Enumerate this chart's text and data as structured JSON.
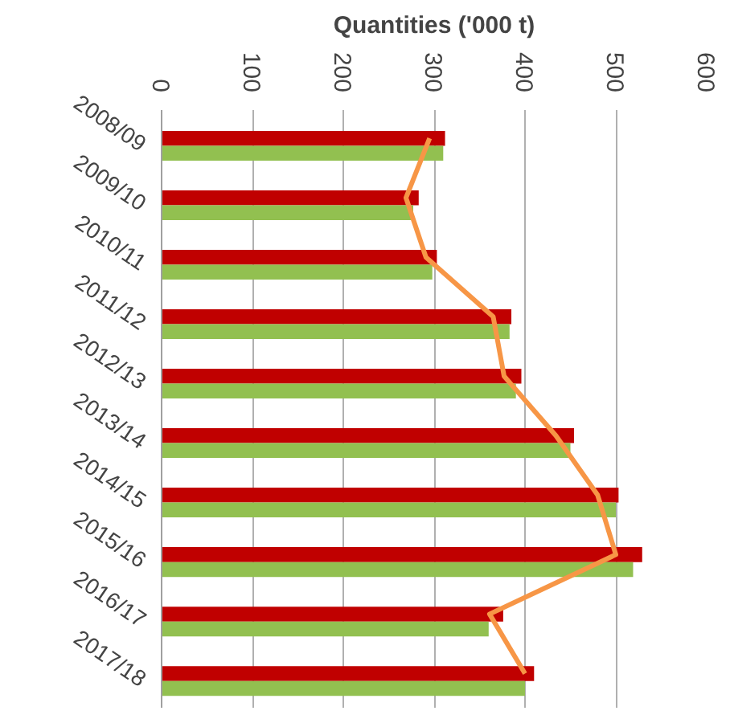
{
  "chart_data": {
    "type": "bar",
    "orientation": "horizontal",
    "title": "Quantities ('000 t)",
    "categories": [
      "2008/09",
      "2009/10",
      "2010/11",
      "2011/12",
      "2012/13",
      "2013/14",
      "2014/15",
      "2015/16",
      "2016/17",
      "2017/18"
    ],
    "series": [
      {
        "color": "#c00000",
        "values": [
          312,
          283,
          303,
          385,
          396,
          454,
          503,
          529,
          376,
          410
        ]
      },
      {
        "color": "#92c050",
        "values": [
          310,
          277,
          298,
          383,
          390,
          450,
          500,
          519,
          360,
          400
        ]
      },
      {
        "type": "line",
        "color": "#f79646",
        "values": [
          295,
          269,
          291,
          365,
          377,
          434,
          480,
          500,
          361,
          400
        ]
      }
    ],
    "xlim": [
      0,
      600
    ],
    "xticks": [
      0,
      100,
      200,
      300,
      400,
      500,
      600
    ],
    "grid": "x"
  }
}
